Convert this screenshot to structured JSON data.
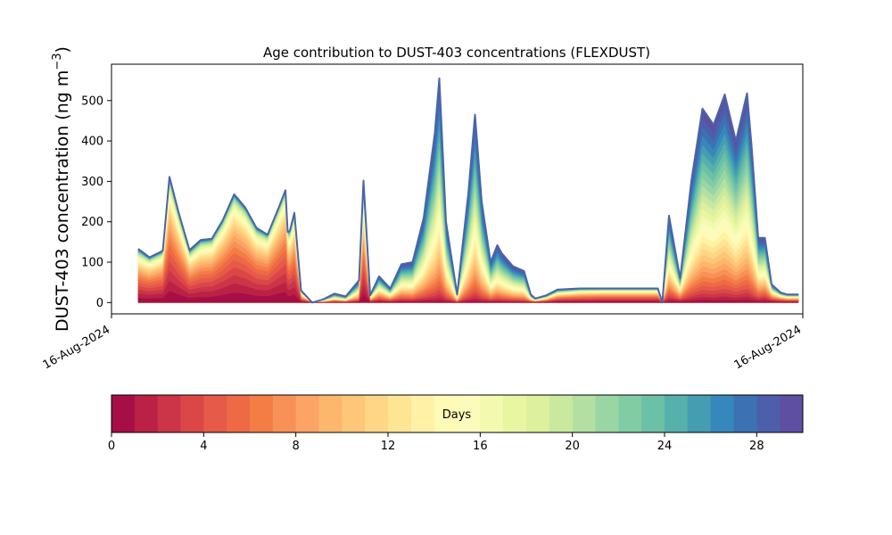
{
  "chart_data": {
    "type": "area",
    "title": "Age contribution to DUST-403 concentrations (FLEXDUST)",
    "ylabel": "DUST-403 concentration (ng m⁻³)",
    "ylabel_main": "DUST-403 concentration (ng m",
    "ylabel_exp": "−3",
    "ylabel_close": ")",
    "ylim": [
      -28,
      590
    ],
    "yticks": [
      0,
      100,
      200,
      300,
      400,
      500
    ],
    "xticks": [
      "16-Aug-2024",
      "16-Aug-2024"
    ],
    "x": [
      1.2,
      1.7,
      2.3,
      2.6,
      3.0,
      3.5,
      4.0,
      4.5,
      5.0,
      5.5,
      6.0,
      6.5,
      7.0,
      7.5,
      7.8,
      7.9,
      8.0,
      8.2,
      8.5,
      9.0,
      9.5,
      10.0,
      10.5,
      11.1,
      11.3,
      11.6,
      12.0,
      12.5,
      13.0,
      13.5,
      14.0,
      14.5,
      14.7,
      15.0,
      15.5,
      16.0,
      16.3,
      16.6,
      17.0,
      17.3,
      17.5,
      18.0,
      18.5,
      18.8,
      19.0,
      19.5,
      20.0,
      21.0,
      22.0,
      23.0,
      24.0,
      24.5,
      24.7,
      25.0,
      25.5,
      26.0,
      26.5,
      27.0,
      27.5,
      28.0,
      28.5,
      28.7,
      29.0,
      29.3,
      29.6,
      30.0,
      30.3,
      30.6,
      30.8
    ],
    "total": [
      133,
      112,
      128,
      311,
      225,
      130,
      155,
      158,
      205,
      268,
      235,
      185,
      168,
      235,
      278,
      175,
      178,
      222,
      30,
      0,
      8,
      22,
      15,
      55,
      302,
      18,
      65,
      35,
      95,
      100,
      210,
      420,
      555,
      200,
      20,
      270,
      465,
      250,
      100,
      142,
      122,
      90,
      78,
      20,
      10,
      18,
      32,
      35,
      35,
      35,
      35,
      35,
      0,
      215,
      60,
      300,
      480,
      440,
      515,
      400,
      518,
      390,
      160,
      160,
      45,
      25,
      20,
      20,
      20
    ],
    "young_fraction": [
      0.85,
      0.88,
      0.9,
      0.92,
      0.9,
      0.85,
      0.88,
      0.9,
      0.92,
      0.92,
      0.92,
      0.9,
      0.92,
      0.95,
      0.95,
      0.93,
      0.9,
      0.9,
      0.6,
      0.2,
      0.1,
      0.2,
      0.15,
      0.2,
      0.7,
      0.4,
      0.3,
      0.3,
      0.2,
      0.15,
      0.1,
      0.05,
      0.05,
      0.08,
      0.1,
      0.05,
      0.05,
      0.06,
      0.1,
      0.1,
      0.1,
      0.1,
      0.1,
      0.2,
      0.3,
      0.4,
      0.6,
      0.7,
      0.75,
      0.75,
      0.75,
      0.75,
      0.5,
      0.15,
      0.3,
      0.1,
      0.08,
      0.08,
      0.08,
      0.08,
      0.08,
      0.08,
      0.15,
      0.2,
      0.4,
      0.5,
      0.5,
      0.5,
      0.5
    ],
    "colorbar": {
      "label": "Days",
      "ticks": [
        0,
        4,
        8,
        12,
        16,
        20,
        24,
        28
      ],
      "range": [
        0,
        30
      ],
      "colors": [
        "#a50f45",
        "#bb2145",
        "#cc3447",
        "#db4747",
        "#e55a49",
        "#ee6a45",
        "#f47d46",
        "#f89157",
        "#fba465",
        "#fdb76d",
        "#fec678",
        "#fed686",
        "#fee594",
        "#fff1a6",
        "#fffab6",
        "#fbfcbb",
        "#f3fab0",
        "#e8f6a2",
        "#dcf09e",
        "#c9e99f",
        "#b3e0a2",
        "#9ad6a4",
        "#82cca4",
        "#6bc1a5",
        "#56b0ab",
        "#449db1",
        "#3687bc",
        "#3c72b4",
        "#4d5fab",
        "#5e4fa2"
      ]
    }
  }
}
